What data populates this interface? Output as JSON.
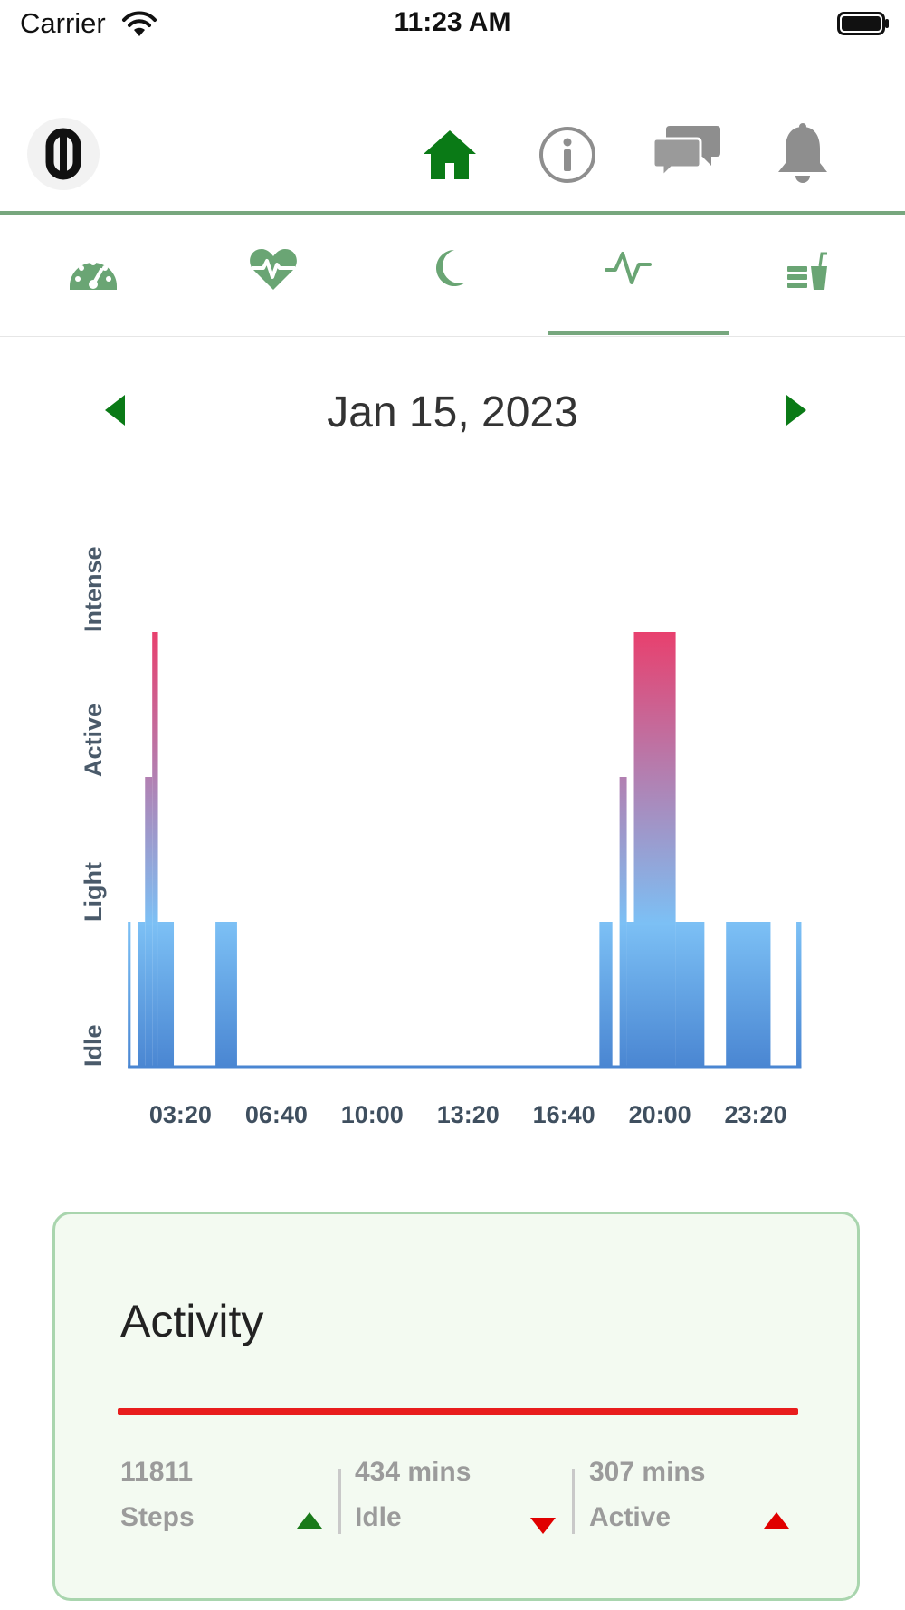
{
  "status_bar": {
    "carrier": "Carrier",
    "time": "11:23 AM"
  },
  "header": {
    "logo_icon": "fitbit-logo-icon",
    "nav_icons": [
      "home-icon",
      "info-icon",
      "chat-icon",
      "bell-icon"
    ],
    "active_nav": "home-icon",
    "accent_color": "#0a7a16"
  },
  "sub_tabs": {
    "icons": [
      "dashboard-gauge-icon",
      "heart-rate-icon",
      "moon-sleep-icon",
      "activity-pulse-icon",
      "food-drink-icon"
    ],
    "active_tab": "activity-pulse-icon",
    "tab_color": "#6aa574"
  },
  "date_nav": {
    "date": "Jan 15, 2023",
    "arrow_color": "#0a7a16"
  },
  "chart_data": {
    "type": "bar",
    "x_unit": "hours",
    "xlim": [
      1.4,
      25.0
    ],
    "x_ticks": [
      "03:20",
      "06:40",
      "10:00",
      "13:20",
      "16:40",
      "20:00",
      "23:20"
    ],
    "x_tick_values": [
      3.333,
      6.667,
      10.0,
      13.333,
      16.667,
      20.0,
      23.333
    ],
    "y_levels": [
      "Idle",
      "Light",
      "Active",
      "Intense"
    ],
    "ylim": [
      0,
      3
    ],
    "baseline_level": 0,
    "gradient_colors": {
      "low": "#4a86d2",
      "mid": "#7cc0f5",
      "high": "#e8406e"
    },
    "bars": [
      {
        "start": 1.5,
        "end": 1.6,
        "level": 1.0
      },
      {
        "start": 1.85,
        "end": 2.1,
        "level": 1.0
      },
      {
        "start": 2.1,
        "end": 2.35,
        "level": 2.0
      },
      {
        "start": 2.35,
        "end": 2.55,
        "level": 3.0
      },
      {
        "start": 2.55,
        "end": 3.1,
        "level": 1.0
      },
      {
        "start": 4.55,
        "end": 5.3,
        "level": 1.0
      },
      {
        "start": 17.9,
        "end": 18.35,
        "level": 1.0
      },
      {
        "start": 18.6,
        "end": 18.85,
        "level": 2.0
      },
      {
        "start": 18.85,
        "end": 19.1,
        "level": 1.0
      },
      {
        "start": 19.1,
        "end": 20.55,
        "level": 3.0
      },
      {
        "start": 20.55,
        "end": 21.55,
        "level": 1.0
      },
      {
        "start": 22.3,
        "end": 23.85,
        "level": 1.0
      },
      {
        "start": 24.75,
        "end": 24.92,
        "level": 1.0
      }
    ]
  },
  "activity_card": {
    "title": "Activity",
    "bar_color": "#e81d1d",
    "stats": [
      {
        "value": "11811",
        "label": "Steps",
        "trend": "up",
        "trend_color": "#1a7a1a"
      },
      {
        "value": "434 mins",
        "label": "Idle",
        "trend": "down",
        "trend_color": "#e00000"
      },
      {
        "value": "307 mins",
        "label": "Active",
        "trend": "up",
        "trend_color": "#e00000"
      }
    ]
  }
}
